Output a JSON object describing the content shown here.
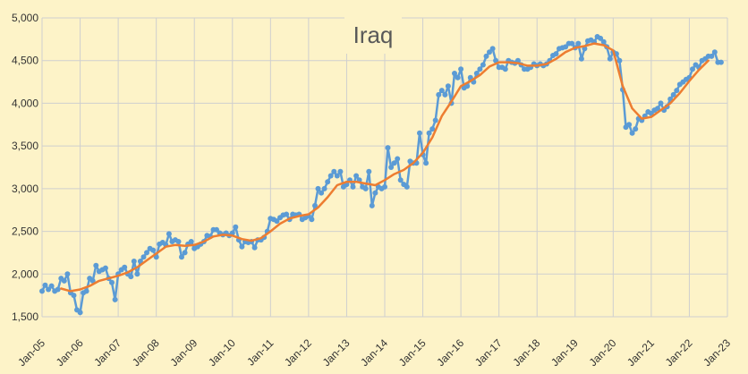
{
  "chart_data": {
    "type": "line",
    "title": "Iraq",
    "xlabel": "",
    "ylabel": "",
    "ylim": [
      1500,
      5000
    ],
    "y_ticks": [
      "1,500",
      "2,000",
      "2,500",
      "3,000",
      "3,500",
      "4,000",
      "4,500",
      "5,000"
    ],
    "x_ticks": [
      "Jan-05",
      "Jan-06",
      "Jan-07",
      "Jan-08",
      "Jan-09",
      "Jan-10",
      "Jan-11",
      "Jan-12",
      "Jan-13",
      "Jan-14",
      "Jan-15",
      "Jan-16",
      "Jan-17",
      "Jan-18",
      "Jan-19",
      "Jan-20",
      "Jan-21",
      "Jan-22",
      "Jan-23"
    ],
    "grid": true,
    "legend": "none",
    "series": [
      {
        "color": "#5b9bd5",
        "markers": true,
        "points": [
          [
            "2005-01",
            1800
          ],
          [
            "2005-02",
            1870
          ],
          [
            "2005-03",
            1820
          ],
          [
            "2005-04",
            1860
          ],
          [
            "2005-05",
            1800
          ],
          [
            "2005-06",
            1820
          ],
          [
            "2005-07",
            1950
          ],
          [
            "2005-08",
            1920
          ],
          [
            "2005-09",
            2000
          ],
          [
            "2005-10",
            1780
          ],
          [
            "2005-11",
            1750
          ],
          [
            "2005-12",
            1580
          ],
          [
            "2006-01",
            1550
          ],
          [
            "2006-02",
            1780
          ],
          [
            "2006-03",
            1800
          ],
          [
            "2006-04",
            1950
          ],
          [
            "2006-05",
            1920
          ],
          [
            "2006-06",
            2100
          ],
          [
            "2006-07",
            2030
          ],
          [
            "2006-08",
            2050
          ],
          [
            "2006-09",
            2070
          ],
          [
            "2006-10",
            1950
          ],
          [
            "2006-11",
            1900
          ],
          [
            "2006-12",
            1700
          ],
          [
            "2007-01",
            2000
          ],
          [
            "2007-02",
            2050
          ],
          [
            "2007-03",
            2080
          ],
          [
            "2007-04",
            2000
          ],
          [
            "2007-05",
            1970
          ],
          [
            "2007-06",
            2150
          ],
          [
            "2007-07",
            2000
          ],
          [
            "2007-08",
            2150
          ],
          [
            "2007-09",
            2200
          ],
          [
            "2007-10",
            2250
          ],
          [
            "2007-11",
            2300
          ],
          [
            "2007-12",
            2280
          ],
          [
            "2008-01",
            2200
          ],
          [
            "2008-02",
            2350
          ],
          [
            "2008-03",
            2370
          ],
          [
            "2008-04",
            2340
          ],
          [
            "2008-05",
            2470
          ],
          [
            "2008-06",
            2380
          ],
          [
            "2008-07",
            2400
          ],
          [
            "2008-08",
            2380
          ],
          [
            "2008-09",
            2200
          ],
          [
            "2008-10",
            2250
          ],
          [
            "2008-11",
            2350
          ],
          [
            "2008-12",
            2380
          ],
          [
            "2009-01",
            2300
          ],
          [
            "2009-02",
            2320
          ],
          [
            "2009-03",
            2350
          ],
          [
            "2009-04",
            2380
          ],
          [
            "2009-05",
            2450
          ],
          [
            "2009-06",
            2440
          ],
          [
            "2009-07",
            2520
          ],
          [
            "2009-08",
            2520
          ],
          [
            "2009-09",
            2480
          ],
          [
            "2009-10",
            2460
          ],
          [
            "2009-11",
            2480
          ],
          [
            "2009-12",
            2450
          ],
          [
            "2010-01",
            2480
          ],
          [
            "2010-02",
            2550
          ],
          [
            "2010-03",
            2400
          ],
          [
            "2010-04",
            2320
          ],
          [
            "2010-05",
            2380
          ],
          [
            "2010-06",
            2370
          ],
          [
            "2010-07",
            2380
          ],
          [
            "2010-08",
            2310
          ],
          [
            "2010-09",
            2400
          ],
          [
            "2010-10",
            2400
          ],
          [
            "2010-11",
            2430
          ],
          [
            "2010-12",
            2500
          ],
          [
            "2011-01",
            2650
          ],
          [
            "2011-02",
            2640
          ],
          [
            "2011-03",
            2620
          ],
          [
            "2011-04",
            2660
          ],
          [
            "2011-05",
            2690
          ],
          [
            "2011-06",
            2700
          ],
          [
            "2011-07",
            2640
          ],
          [
            "2011-08",
            2700
          ],
          [
            "2011-09",
            2690
          ],
          [
            "2011-10",
            2700
          ],
          [
            "2011-11",
            2640
          ],
          [
            "2011-12",
            2660
          ],
          [
            "2012-01",
            2680
          ],
          [
            "2012-02",
            2640
          ],
          [
            "2012-03",
            2800
          ],
          [
            "2012-04",
            3000
          ],
          [
            "2012-05",
            2950
          ],
          [
            "2012-06",
            3000
          ],
          [
            "2012-07",
            3080
          ],
          [
            "2012-08",
            3150
          ],
          [
            "2012-09",
            3200
          ],
          [
            "2012-10",
            3150
          ],
          [
            "2012-11",
            3200
          ],
          [
            "2012-12",
            3020
          ],
          [
            "2013-01",
            3050
          ],
          [
            "2013-02",
            3100
          ],
          [
            "2013-03",
            3020
          ],
          [
            "2013-04",
            3150
          ],
          [
            "2013-05",
            3100
          ],
          [
            "2013-06",
            3020
          ],
          [
            "2013-07",
            3000
          ],
          [
            "2013-08",
            3200
          ],
          [
            "2013-09",
            2800
          ],
          [
            "2013-10",
            2950
          ],
          [
            "2013-11",
            3020
          ],
          [
            "2013-12",
            3000
          ],
          [
            "2014-01",
            3020
          ],
          [
            "2014-02",
            3480
          ],
          [
            "2014-03",
            3250
          ],
          [
            "2014-04",
            3300
          ],
          [
            "2014-05",
            3350
          ],
          [
            "2014-06",
            3100
          ],
          [
            "2014-07",
            3050
          ],
          [
            "2014-08",
            3020
          ],
          [
            "2014-09",
            3320
          ],
          [
            "2014-10",
            3300
          ],
          [
            "2014-11",
            3300
          ],
          [
            "2014-12",
            3650
          ],
          [
            "2015-01",
            3400
          ],
          [
            "2015-02",
            3300
          ],
          [
            "2015-03",
            3650
          ],
          [
            "2015-04",
            3700
          ],
          [
            "2015-05",
            3800
          ],
          [
            "2015-06",
            4100
          ],
          [
            "2015-07",
            4150
          ],
          [
            "2015-08",
            4100
          ],
          [
            "2015-09",
            4200
          ],
          [
            "2015-10",
            4000
          ],
          [
            "2015-11",
            4350
          ],
          [
            "2015-12",
            4300
          ],
          [
            "2016-01",
            4400
          ],
          [
            "2016-02",
            4180
          ],
          [
            "2016-03",
            4200
          ],
          [
            "2016-04",
            4300
          ],
          [
            "2016-05",
            4250
          ],
          [
            "2016-06",
            4350
          ],
          [
            "2016-07",
            4400
          ],
          [
            "2016-08",
            4450
          ],
          [
            "2016-09",
            4550
          ],
          [
            "2016-10",
            4600
          ],
          [
            "2016-11",
            4640
          ],
          [
            "2016-12",
            4500
          ],
          [
            "2017-01",
            4420
          ],
          [
            "2017-02",
            4420
          ],
          [
            "2017-03",
            4400
          ],
          [
            "2017-04",
            4500
          ],
          [
            "2017-05",
            4480
          ],
          [
            "2017-06",
            4470
          ],
          [
            "2017-07",
            4500
          ],
          [
            "2017-08",
            4450
          ],
          [
            "2017-09",
            4400
          ],
          [
            "2017-10",
            4400
          ],
          [
            "2017-11",
            4420
          ],
          [
            "2017-12",
            4460
          ],
          [
            "2018-01",
            4440
          ],
          [
            "2018-02",
            4460
          ],
          [
            "2018-03",
            4440
          ],
          [
            "2018-04",
            4460
          ],
          [
            "2018-05",
            4500
          ],
          [
            "2018-06",
            4560
          ],
          [
            "2018-07",
            4580
          ],
          [
            "2018-08",
            4640
          ],
          [
            "2018-09",
            4650
          ],
          [
            "2018-10",
            4660
          ],
          [
            "2018-11",
            4700
          ],
          [
            "2018-12",
            4700
          ],
          [
            "2019-01",
            4650
          ],
          [
            "2019-02",
            4700
          ],
          [
            "2019-03",
            4520
          ],
          [
            "2019-04",
            4640
          ],
          [
            "2019-05",
            4730
          ],
          [
            "2019-06",
            4740
          ],
          [
            "2019-07",
            4720
          ],
          [
            "2019-08",
            4780
          ],
          [
            "2019-09",
            4760
          ],
          [
            "2019-10",
            4720
          ],
          [
            "2019-11",
            4660
          ],
          [
            "2019-12",
            4520
          ],
          [
            "2020-01",
            4600
          ],
          [
            "2020-02",
            4580
          ],
          [
            "2020-03",
            4500
          ],
          [
            "2020-04",
            4160
          ],
          [
            "2020-05",
            3720
          ],
          [
            "2020-06",
            3750
          ],
          [
            "2020-07",
            3650
          ],
          [
            "2020-08",
            3700
          ],
          [
            "2020-09",
            3820
          ],
          [
            "2020-10",
            3800
          ],
          [
            "2020-11",
            3850
          ],
          [
            "2020-12",
            3900
          ],
          [
            "2021-01",
            3880
          ],
          [
            "2021-02",
            3920
          ],
          [
            "2021-03",
            3940
          ],
          [
            "2021-04",
            4000
          ],
          [
            "2021-05",
            3920
          ],
          [
            "2021-06",
            3960
          ],
          [
            "2021-07",
            4050
          ],
          [
            "2021-08",
            4100
          ],
          [
            "2021-09",
            4150
          ],
          [
            "2021-10",
            4220
          ],
          [
            "2021-11",
            4250
          ],
          [
            "2021-12",
            4280
          ],
          [
            "2022-01",
            4300
          ],
          [
            "2022-02",
            4400
          ],
          [
            "2022-03",
            4450
          ],
          [
            "2022-04",
            4420
          ],
          [
            "2022-05",
            4500
          ],
          [
            "2022-06",
            4520
          ],
          [
            "2022-07",
            4550
          ],
          [
            "2022-08",
            4550
          ],
          [
            "2022-09",
            4600
          ],
          [
            "2022-10",
            4480
          ],
          [
            "2022-11",
            4480
          ]
        ]
      },
      {
        "color": "#ed7d31",
        "markers": false,
        "points": [
          [
            "2005-07",
            1830
          ],
          [
            "2005-10",
            1800
          ],
          [
            "2006-01",
            1820
          ],
          [
            "2006-04",
            1860
          ],
          [
            "2006-07",
            1920
          ],
          [
            "2006-10",
            1950
          ],
          [
            "2007-01",
            1980
          ],
          [
            "2007-04",
            2020
          ],
          [
            "2007-07",
            2080
          ],
          [
            "2007-10",
            2160
          ],
          [
            "2008-01",
            2240
          ],
          [
            "2008-04",
            2320
          ],
          [
            "2008-07",
            2340
          ],
          [
            "2008-10",
            2330
          ],
          [
            "2009-01",
            2340
          ],
          [
            "2009-04",
            2380
          ],
          [
            "2009-07",
            2440
          ],
          [
            "2009-10",
            2460
          ],
          [
            "2010-01",
            2450
          ],
          [
            "2010-04",
            2410
          ],
          [
            "2010-07",
            2390
          ],
          [
            "2010-10",
            2420
          ],
          [
            "2011-01",
            2500
          ],
          [
            "2011-04",
            2590
          ],
          [
            "2011-07",
            2650
          ],
          [
            "2011-10",
            2680
          ],
          [
            "2012-01",
            2700
          ],
          [
            "2012-04",
            2780
          ],
          [
            "2012-07",
            2900
          ],
          [
            "2012-10",
            3040
          ],
          [
            "2013-01",
            3080
          ],
          [
            "2013-04",
            3080
          ],
          [
            "2013-07",
            3060
          ],
          [
            "2013-10",
            3040
          ],
          [
            "2014-01",
            3100
          ],
          [
            "2014-04",
            3170
          ],
          [
            "2014-07",
            3220
          ],
          [
            "2014-10",
            3300
          ],
          [
            "2015-01",
            3420
          ],
          [
            "2015-04",
            3600
          ],
          [
            "2015-07",
            3850
          ],
          [
            "2015-10",
            4020
          ],
          [
            "2016-01",
            4200
          ],
          [
            "2016-04",
            4260
          ],
          [
            "2016-07",
            4330
          ],
          [
            "2016-10",
            4430
          ],
          [
            "2017-01",
            4480
          ],
          [
            "2017-04",
            4480
          ],
          [
            "2017-07",
            4470
          ],
          [
            "2017-10",
            4440
          ],
          [
            "2018-01",
            4440
          ],
          [
            "2018-04",
            4460
          ],
          [
            "2018-07",
            4520
          ],
          [
            "2018-10",
            4600
          ],
          [
            "2019-01",
            4650
          ],
          [
            "2019-04",
            4670
          ],
          [
            "2019-07",
            4700
          ],
          [
            "2019-10",
            4680
          ],
          [
            "2020-01",
            4620
          ],
          [
            "2020-04",
            4200
          ],
          [
            "2020-07",
            3940
          ],
          [
            "2020-10",
            3820
          ],
          [
            "2021-01",
            3840
          ],
          [
            "2021-04",
            3920
          ],
          [
            "2021-07",
            4000
          ],
          [
            "2021-10",
            4120
          ],
          [
            "2022-01",
            4260
          ],
          [
            "2022-04",
            4390
          ],
          [
            "2022-07",
            4500
          ]
        ]
      }
    ]
  }
}
